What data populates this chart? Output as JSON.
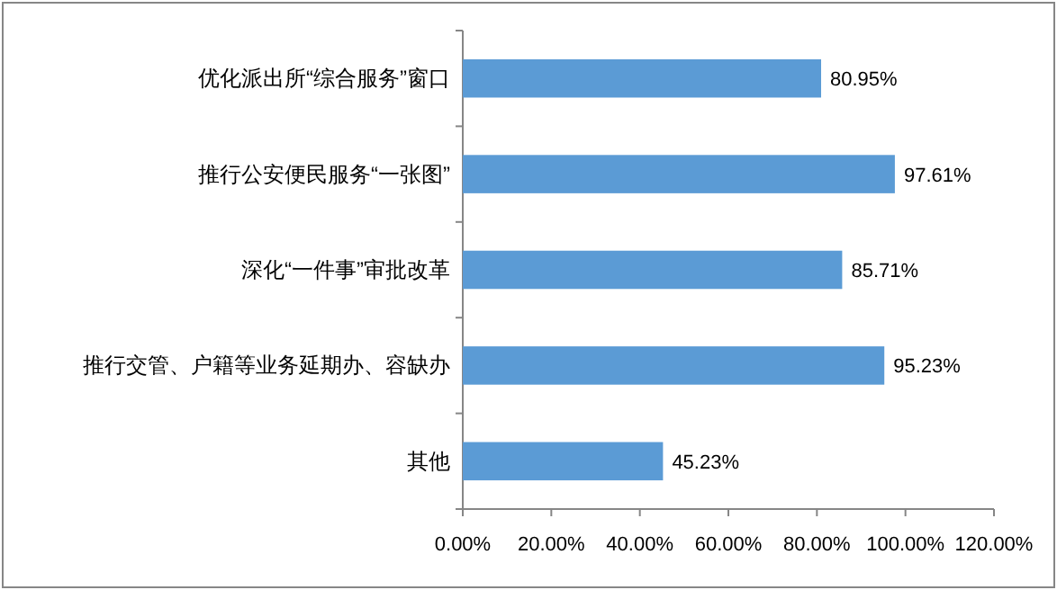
{
  "chart_data": {
    "type": "bar",
    "orientation": "horizontal",
    "categories": [
      "优化派出所“综合服务”窗口",
      "推行公安便民服务“一张图”",
      "深化“一件事”审批改革",
      "推行交管、户籍等业务延期办、容缺办",
      "其他"
    ],
    "values": [
      80.95,
      97.61,
      85.71,
      95.23,
      45.23
    ],
    "value_labels": [
      "80.95%",
      "97.61%",
      "85.71%",
      "95.23%",
      "45.23%"
    ],
    "color": "#5b9bd5",
    "xlim": [
      0,
      120
    ],
    "xticks": [
      {
        "value": 0,
        "label": "0.00%"
      },
      {
        "value": 20,
        "label": "20.00%"
      },
      {
        "value": 40,
        "label": "40.00%"
      },
      {
        "value": 60,
        "label": "60.00%"
      },
      {
        "value": 80,
        "label": "80.00%"
      },
      {
        "value": 100,
        "label": "100.00%"
      },
      {
        "value": 120,
        "label": "120.00%"
      }
    ],
    "grid": false
  }
}
